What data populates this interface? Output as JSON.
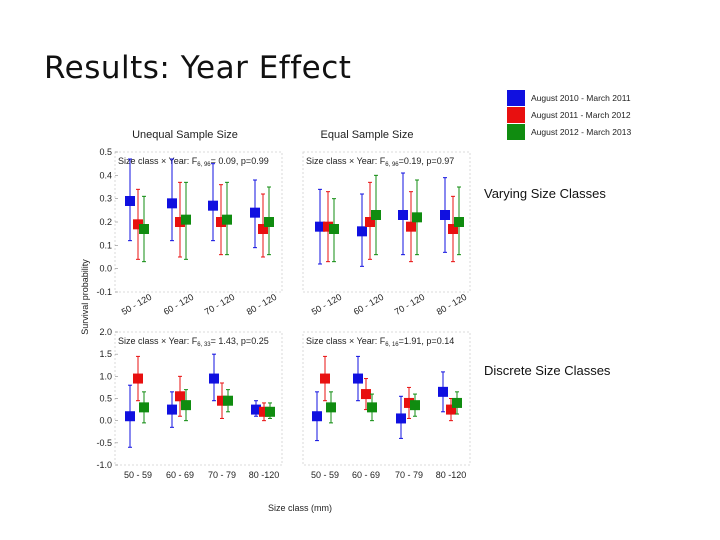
{
  "slide_title": "Results: Year Effect",
  "legend": [
    {
      "label": "August 2010 - March 2011",
      "color": "#1010e0"
    },
    {
      "label": "August 2011 - March 2012",
      "color": "#e81010"
    },
    {
      "label": "August 2012 - March 2013",
      "color": "#108c10"
    }
  ],
  "panel_titles": {
    "unequal": "Unequal Sample Size",
    "equal": "Equal Sample Size"
  },
  "row_labels": {
    "varying": "Varying Size Classes",
    "discrete": "Discrete Size Classes"
  },
  "y_label": "Survival probability",
  "x_label": "Size class (mm)",
  "chart_data": [
    {
      "type": "scatter",
      "panel": "varying-unequal",
      "stat_parts": [
        "Size class × Year: F",
        "6, 96",
        "= 0.09, p=0.99"
      ],
      "categories": [
        "50 - 120",
        "60 - 120",
        "70 - 120",
        "80 - 120"
      ],
      "ylim": [
        -0.1,
        0.5
      ],
      "y_ticks": [
        "0.5",
        "0.4",
        "0.3",
        "0.2",
        "0.1",
        "0.0",
        "-0.1"
      ],
      "series": [
        {
          "name": "August 2010 - March 2011",
          "values": [
            0.29,
            0.28,
            0.27,
            0.24
          ],
          "lower": [
            0.12,
            0.12,
            0.12,
            0.09
          ],
          "upper": [
            0.47,
            0.47,
            0.45,
            0.38
          ]
        },
        {
          "name": "August 2011 - March 2012",
          "values": [
            0.19,
            0.2,
            0.2,
            0.17
          ],
          "lower": [
            0.04,
            0.05,
            0.06,
            0.05
          ],
          "upper": [
            0.34,
            0.37,
            0.36,
            0.32
          ]
        },
        {
          "name": "August 2012 - March 2013",
          "values": [
            0.17,
            0.21,
            0.21,
            0.2
          ],
          "lower": [
            0.03,
            0.04,
            0.06,
            0.06
          ],
          "upper": [
            0.31,
            0.37,
            0.37,
            0.35
          ]
        }
      ]
    },
    {
      "type": "scatter",
      "panel": "varying-equal",
      "stat_parts": [
        "Size class × Year: F",
        "6, 96",
        "=0.19, p=0.97"
      ],
      "categories": [
        "50 - 120",
        "60 - 120",
        "70 - 120",
        "80 - 120"
      ],
      "ylim": [
        -0.1,
        0.5
      ],
      "series": [
        {
          "name": "August 2010 - March 2011",
          "values": [
            0.18,
            0.16,
            0.23,
            0.23
          ],
          "lower": [
            0.02,
            0.01,
            0.06,
            0.07
          ],
          "upper": [
            0.34,
            0.32,
            0.41,
            0.39
          ]
        },
        {
          "name": "August 2011 - March 2012",
          "values": [
            0.18,
            0.2,
            0.18,
            0.17
          ],
          "lower": [
            0.03,
            0.04,
            0.03,
            0.03
          ],
          "upper": [
            0.33,
            0.37,
            0.33,
            0.31
          ]
        },
        {
          "name": "August 2012 - March 2013",
          "values": [
            0.17,
            0.23,
            0.22,
            0.2
          ],
          "lower": [
            0.03,
            0.06,
            0.06,
            0.06
          ],
          "upper": [
            0.3,
            0.4,
            0.38,
            0.35
          ]
        }
      ]
    },
    {
      "type": "scatter",
      "panel": "discrete-unequal",
      "stat_parts": [
        "Size class × Year: F",
        "6, 33",
        "= 1.43, p=0.25"
      ],
      "categories": [
        "50 - 59",
        "60 - 69",
        "70 - 79",
        "80 -120"
      ],
      "ylim": [
        -1.0,
        2.0
      ],
      "y_ticks": [
        "2.0",
        "1.5",
        "1.0",
        "0.5",
        "0.0",
        "-0.5",
        "-1.0"
      ],
      "series": [
        {
          "name": "August 2010 - March 2011",
          "values": [
            0.1,
            0.25,
            0.95,
            0.25
          ],
          "lower": [
            -0.6,
            -0.15,
            0.45,
            0.1
          ],
          "upper": [
            0.8,
            0.65,
            1.5,
            0.45
          ]
        },
        {
          "name": "August 2011 - March 2012",
          "values": [
            0.95,
            0.55,
            0.45,
            0.2
          ],
          "lower": [
            0.45,
            0.1,
            0.05,
            0.0
          ],
          "upper": [
            1.45,
            1.0,
            0.85,
            0.4
          ]
        },
        {
          "name": "August 2012 - March 2013",
          "values": [
            0.3,
            0.35,
            0.45,
            0.2
          ],
          "lower": [
            -0.05,
            0.0,
            0.2,
            0.05
          ],
          "upper": [
            0.65,
            0.7,
            0.7,
            0.4
          ]
        }
      ]
    },
    {
      "type": "scatter",
      "panel": "discrete-equal",
      "stat_parts": [
        "Size class × Year: F",
        "6, 16",
        "=1.91, p=0.14"
      ],
      "categories": [
        "50 - 59",
        "60 - 69",
        "70 - 79",
        "80 -120"
      ],
      "ylim": [
        -1.0,
        2.0
      ],
      "series": [
        {
          "name": "August 2010 - March 2011",
          "values": [
            0.1,
            0.95,
            0.05,
            0.65
          ],
          "lower": [
            -0.45,
            0.45,
            -0.4,
            0.2
          ],
          "upper": [
            0.65,
            1.45,
            0.55,
            1.1
          ]
        },
        {
          "name": "August 2011 - March 2012",
          "values": [
            0.95,
            0.6,
            0.4,
            0.25
          ],
          "lower": [
            0.45,
            0.25,
            0.05,
            0.0
          ],
          "upper": [
            1.45,
            0.95,
            0.75,
            0.5
          ]
        },
        {
          "name": "August 2012 - March 2013",
          "values": [
            0.3,
            0.3,
            0.35,
            0.4
          ],
          "lower": [
            -0.05,
            0.0,
            0.1,
            0.15
          ],
          "upper": [
            0.65,
            0.6,
            0.6,
            0.65
          ]
        }
      ]
    }
  ]
}
